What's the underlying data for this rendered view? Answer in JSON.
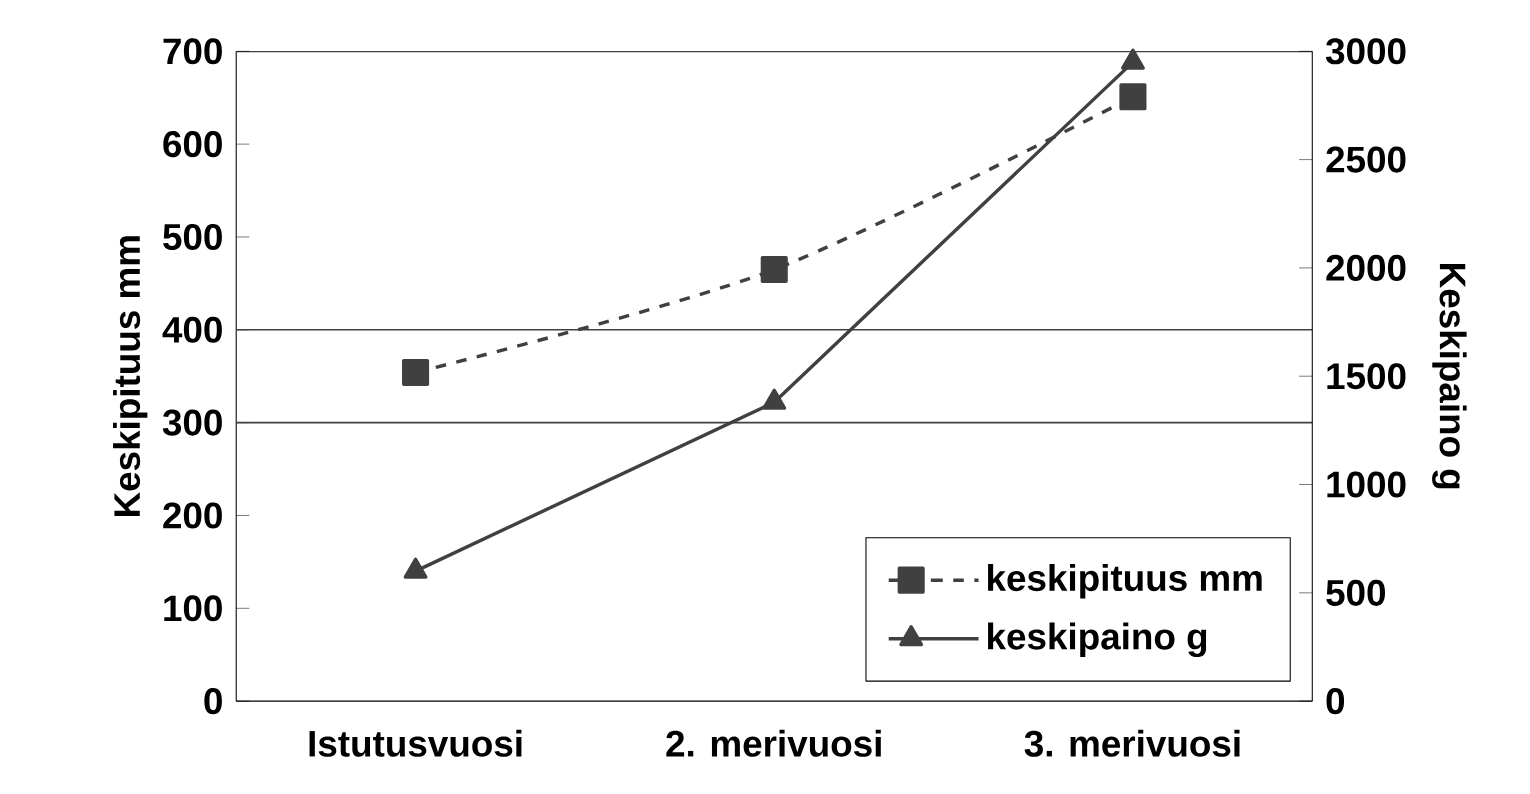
{
  "chart_data": {
    "type": "line",
    "ylabel": "Keskipituus mm",
    "y2label": "Keskipaino g",
    "categories": [
      "Istutusvuosi",
      "2. merivuosi",
      "3. merivuosi"
    ],
    "series": [
      {
        "name": "keskipituus mm",
        "color": "#404040",
        "values": [
          354,
          465,
          651
        ],
        "marker": "square",
        "line_style": "dashed"
      },
      {
        "name": "keskipaino g",
        "color": "#404040",
        "values": [
          600,
          1380,
          2950
        ],
        "marker": "triangle",
        "line_style": "solid",
        "axis": "y2"
      }
    ],
    "ylim": [
      0,
      700
    ],
    "yticks": [
      0,
      100,
      200,
      300,
      400,
      500,
      600,
      700
    ],
    "y2lim": [
      0,
      3000
    ],
    "y2ticks": [
      0,
      500,
      1000,
      1500,
      2000,
      2500,
      3000
    ],
    "ref_lines": [
      {
        "axis": "y",
        "value": 300,
        "color": "#404040"
      },
      {
        "axis": "y",
        "value": 400,
        "color": "#404040"
      }
    ],
    "grid": false,
    "legend": "bottom right"
  }
}
